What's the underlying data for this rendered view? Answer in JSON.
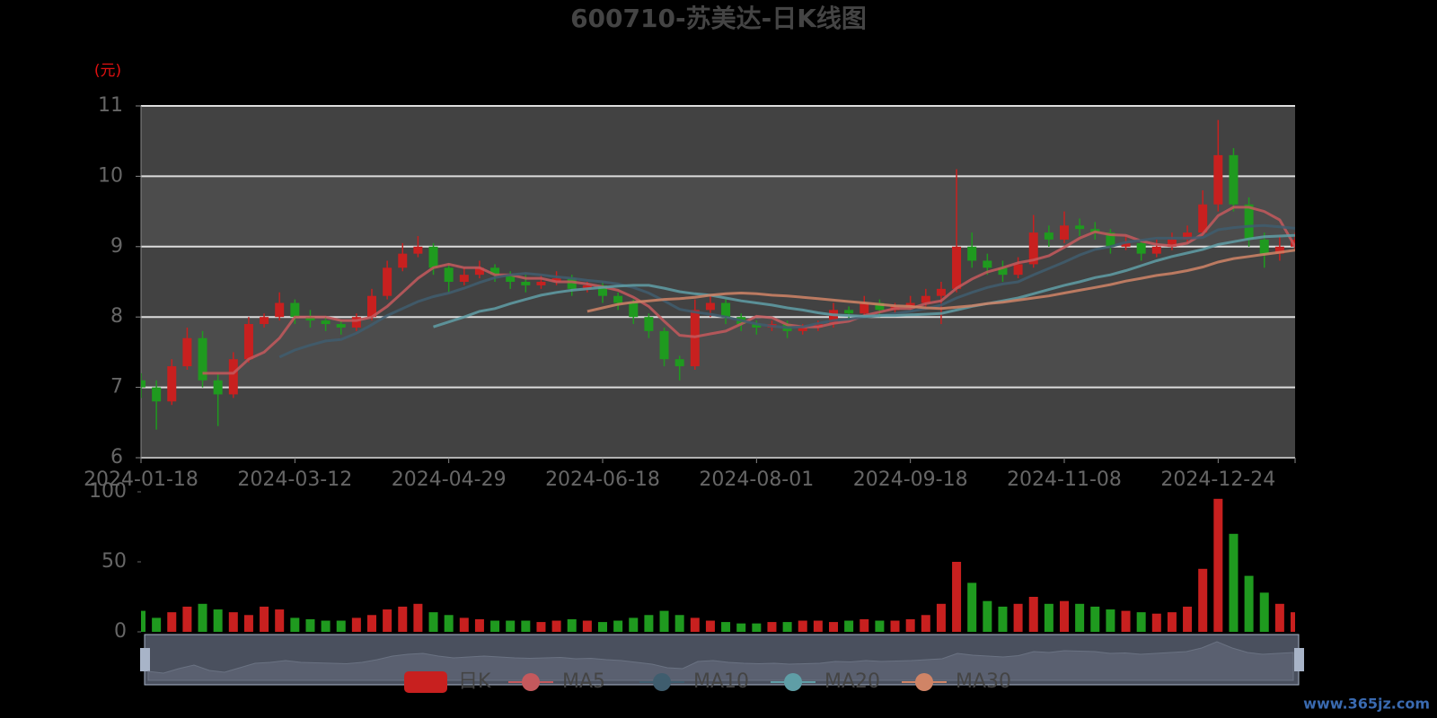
{
  "chart_data": {
    "type": "candlestick",
    "title": "600710-苏美达-日K线图",
    "y_unit": "(元)",
    "watermark": "www.365jz.com",
    "categories": [
      "2024-01-18",
      null,
      null,
      null,
      null,
      null,
      null,
      null,
      null,
      null,
      "2024-03-12",
      null,
      null,
      null,
      null,
      null,
      null,
      null,
      null,
      null,
      "2024-04-29",
      null,
      null,
      null,
      null,
      null,
      null,
      null,
      null,
      null,
      "2024-06-18",
      null,
      null,
      null,
      null,
      null,
      null,
      null,
      null,
      null,
      "2024-08-01",
      null,
      null,
      null,
      null,
      null,
      null,
      null,
      null,
      null,
      "2024-09-18",
      null,
      null,
      null,
      null,
      null,
      null,
      null,
      null,
      null,
      "2024-11-08",
      null,
      null,
      null,
      null,
      null,
      null,
      null,
      null,
      null,
      "2024-12-24",
      null,
      null,
      null,
      null,
      null
    ],
    "ylim": [
      6,
      11
    ],
    "yticks": [
      6,
      7,
      8,
      9,
      10,
      11
    ],
    "grid": true,
    "series": [
      {
        "name": "日K",
        "color": "#c8201f",
        "down_color": "#1f9a1f",
        "open": [
          7.1,
          7.0,
          6.8,
          7.3,
          7.7,
          7.1,
          6.9,
          7.4,
          7.9,
          8.0,
          8.2,
          8.0,
          7.95,
          7.9,
          7.85,
          8.0,
          8.3,
          8.7,
          8.9,
          9.0,
          8.7,
          8.5,
          8.6,
          8.7,
          8.6,
          8.5,
          8.45,
          8.5,
          8.55,
          8.4,
          8.45,
          8.3,
          8.2,
          8.0,
          7.8,
          7.4,
          7.3,
          8.1,
          8.2,
          8.0,
          7.9,
          7.85,
          7.9,
          7.8,
          7.85,
          7.9,
          8.1,
          8.05,
          8.2,
          8.1,
          8.15,
          8.2,
          8.3,
          8.4,
          9.0,
          8.8,
          8.7,
          8.6,
          8.75,
          9.2,
          9.1,
          9.3,
          9.25,
          9.2,
          9.0,
          9.05,
          8.9,
          9.0,
          9.1,
          9.2,
          9.6,
          10.3,
          9.6,
          9.1,
          8.9,
          9.0
        ],
        "close": [
          7.0,
          6.8,
          7.3,
          7.7,
          7.1,
          6.9,
          7.4,
          7.9,
          8.0,
          8.2,
          8.0,
          7.95,
          7.9,
          7.85,
          8.0,
          8.3,
          8.7,
          8.9,
          9.0,
          8.7,
          8.5,
          8.6,
          8.7,
          8.6,
          8.5,
          8.45,
          8.5,
          8.55,
          8.4,
          8.45,
          8.3,
          8.2,
          8.0,
          7.8,
          7.4,
          7.3,
          8.1,
          8.2,
          8.0,
          7.9,
          7.85,
          7.9,
          7.8,
          7.85,
          7.9,
          8.1,
          8.05,
          8.2,
          8.1,
          8.15,
          8.2,
          8.3,
          8.4,
          9.0,
          8.8,
          8.7,
          8.6,
          8.75,
          9.2,
          9.1,
          9.3,
          9.25,
          9.2,
          9.0,
          9.05,
          8.9,
          9.0,
          9.1,
          9.2,
          9.6,
          10.3,
          9.6,
          9.1,
          8.9,
          9.0,
          9.1
        ],
        "low": [
          6.85,
          6.4,
          6.75,
          7.25,
          7.0,
          6.45,
          6.85,
          7.35,
          7.85,
          7.95,
          7.9,
          7.85,
          7.8,
          7.75,
          7.8,
          7.95,
          8.25,
          8.65,
          8.85,
          8.6,
          8.35,
          8.45,
          8.55,
          8.5,
          8.4,
          8.35,
          8.4,
          8.45,
          8.3,
          8.35,
          8.2,
          8.1,
          7.9,
          7.7,
          7.3,
          7.1,
          7.25,
          8.0,
          7.9,
          7.8,
          7.75,
          7.8,
          7.7,
          7.75,
          7.8,
          7.85,
          7.95,
          8.0,
          8.0,
          8.05,
          8.1,
          8.15,
          7.9,
          8.35,
          8.7,
          8.6,
          8.5,
          8.55,
          8.7,
          9.0,
          9.05,
          9.15,
          9.1,
          8.9,
          8.95,
          8.8,
          8.85,
          8.95,
          9.05,
          9.15,
          9.5,
          9.5,
          9.0,
          8.7,
          8.8,
          8.95
        ],
        "high": [
          7.2,
          7.1,
          7.4,
          7.85,
          7.8,
          7.2,
          7.5,
          8.0,
          8.05,
          8.35,
          8.25,
          8.1,
          8.0,
          7.95,
          8.05,
          8.4,
          8.8,
          9.05,
          9.15,
          9.05,
          8.75,
          8.7,
          8.8,
          8.75,
          8.65,
          8.6,
          8.6,
          8.65,
          8.6,
          8.5,
          8.5,
          8.35,
          8.25,
          8.05,
          7.85,
          7.45,
          8.25,
          8.3,
          8.25,
          8.05,
          7.95,
          7.95,
          7.95,
          7.9,
          7.95,
          8.2,
          8.15,
          8.3,
          8.25,
          8.2,
          8.3,
          8.4,
          8.5,
          10.1,
          9.2,
          8.9,
          8.8,
          8.85,
          9.45,
          9.3,
          9.5,
          9.4,
          9.35,
          9.25,
          9.15,
          9.1,
          9.1,
          9.2,
          9.3,
          9.8,
          10.8,
          10.4,
          9.7,
          9.2,
          9.15,
          9.2
        ]
      },
      {
        "name": "MA5",
        "color": "#c4595d",
        "values": [
          null,
          null,
          null,
          null,
          7.2,
          7.2,
          7.2,
          7.4,
          7.5,
          7.7,
          8.0,
          8.0,
          8.0,
          7.95,
          7.95,
          8.0,
          8.15,
          8.35,
          8.55,
          8.7,
          8.75,
          8.7,
          8.7,
          8.6,
          8.6,
          8.55,
          8.55,
          8.5,
          8.5,
          8.47,
          8.43,
          8.38,
          8.28,
          8.15,
          7.94,
          7.74,
          7.72,
          7.76,
          7.8,
          7.9,
          8.01,
          7.99,
          7.89,
          7.86,
          7.86,
          7.91,
          7.94,
          8.02,
          8.07,
          8.12,
          8.12,
          8.19,
          8.23,
          8.41,
          8.54,
          8.64,
          8.7,
          8.77,
          8.81,
          8.87,
          8.99,
          9.12,
          9.21,
          9.17,
          9.16,
          9.08,
          9.03,
          9.01,
          9.05,
          9.18,
          9.44,
          9.56,
          9.56,
          9.5,
          9.38,
          9.0
        ]
      },
      {
        "name": "MA10",
        "color": "#3f5d6e",
        "values": [
          null,
          null,
          null,
          null,
          null,
          null,
          null,
          null,
          null,
          7.43,
          7.53,
          7.6,
          7.66,
          7.68,
          7.77,
          7.89,
          8.02,
          8.12,
          8.22,
          8.29,
          8.34,
          8.41,
          8.49,
          8.56,
          8.6,
          8.62,
          8.6,
          8.57,
          8.55,
          8.52,
          8.5,
          8.47,
          8.42,
          8.34,
          8.23,
          8.11,
          8.07,
          8.04,
          8.0,
          7.95,
          7.9,
          7.87,
          7.85,
          7.86,
          7.91,
          7.95,
          7.97,
          8.0,
          8.02,
          8.05,
          8.08,
          8.12,
          8.17,
          8.27,
          8.35,
          8.42,
          8.47,
          8.5,
          8.6,
          8.69,
          8.78,
          8.88,
          8.96,
          9.0,
          9.06,
          9.09,
          9.12,
          9.12,
          9.12,
          9.13,
          9.24,
          9.27,
          9.29,
          9.3,
          9.28,
          9.26
        ]
      },
      {
        "name": "MA20",
        "color": "#5f9ea6",
        "values": [
          null,
          null,
          null,
          null,
          null,
          null,
          null,
          null,
          null,
          null,
          null,
          null,
          null,
          null,
          null,
          null,
          null,
          null,
          null,
          7.86,
          7.93,
          8.0,
          8.08,
          8.12,
          8.19,
          8.25,
          8.31,
          8.35,
          8.38,
          8.4,
          8.42,
          8.44,
          8.45,
          8.45,
          8.41,
          8.36,
          8.33,
          8.31,
          8.27,
          8.23,
          8.2,
          8.17,
          8.13,
          8.1,
          8.06,
          8.03,
          8.02,
          8.01,
          8.02,
          8.02,
          8.03,
          8.04,
          8.05,
          8.1,
          8.15,
          8.19,
          8.23,
          8.27,
          8.33,
          8.39,
          8.45,
          8.5,
          8.56,
          8.6,
          8.66,
          8.73,
          8.8,
          8.86,
          8.91,
          8.96,
          9.03,
          9.07,
          9.11,
          9.14,
          9.15,
          9.16
        ]
      },
      {
        "name": "MA30",
        "color": "#d08466",
        "values": [
          null,
          null,
          null,
          null,
          null,
          null,
          null,
          null,
          null,
          null,
          null,
          null,
          null,
          null,
          null,
          null,
          null,
          null,
          null,
          null,
          null,
          null,
          null,
          null,
          null,
          null,
          null,
          null,
          null,
          8.08,
          8.13,
          8.18,
          8.21,
          8.23,
          8.25,
          8.26,
          8.28,
          8.31,
          8.33,
          8.34,
          8.33,
          8.31,
          8.3,
          8.28,
          8.26,
          8.24,
          8.22,
          8.2,
          8.18,
          8.16,
          8.15,
          8.13,
          8.12,
          8.14,
          8.16,
          8.19,
          8.21,
          8.24,
          8.27,
          8.3,
          8.34,
          8.38,
          8.42,
          8.46,
          8.51,
          8.55,
          8.59,
          8.62,
          8.66,
          8.71,
          8.78,
          8.83,
          8.86,
          8.89,
          8.92,
          8.95
        ]
      }
    ],
    "volume": {
      "ylim": [
        0,
        100
      ],
      "yticks": [
        0,
        50,
        100
      ],
      "values": [
        15,
        10,
        14,
        18,
        20,
        16,
        14,
        12,
        18,
        16,
        10,
        9,
        8,
        8,
        10,
        12,
        16,
        18,
        20,
        14,
        12,
        10,
        9,
        8,
        8,
        8,
        7,
        8,
        9,
        8,
        7,
        8,
        10,
        12,
        15,
        12,
        10,
        8,
        7,
        6,
        6,
        7,
        7,
        8,
        8,
        7,
        8,
        9,
        8,
        8,
        9,
        12,
        20,
        50,
        35,
        22,
        18,
        20,
        25,
        20,
        22,
        20,
        18,
        16,
        15,
        14,
        13,
        14,
        18,
        45,
        95,
        70,
        40,
        28,
        20,
        14
      ]
    }
  }
}
